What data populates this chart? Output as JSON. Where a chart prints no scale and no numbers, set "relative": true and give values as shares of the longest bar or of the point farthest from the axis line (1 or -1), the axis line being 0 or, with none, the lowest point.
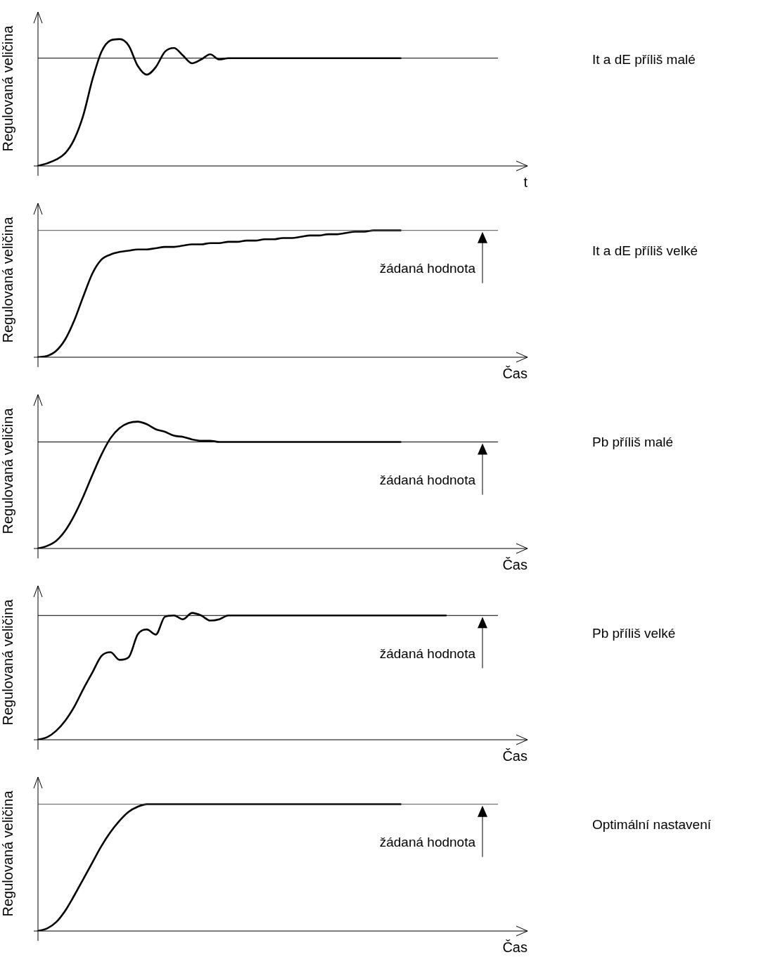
{
  "chart_data": [
    {
      "type": "line",
      "xlabel": "t",
      "ylabel": "Regulovaná veličina",
      "relative": true,
      "tick_labels": false,
      "legend": false,
      "categories": [
        null,
        null,
        null,
        null,
        null,
        null,
        null,
        null,
        null,
        null,
        null,
        null,
        null,
        null,
        null,
        null,
        null,
        null,
        null,
        null,
        null,
        null,
        null,
        null,
        null,
        null,
        null,
        null,
        null,
        null,
        null,
        null,
        null,
        null,
        null,
        null,
        null,
        null,
        null,
        null,
        null,
        null,
        null,
        null,
        null,
        null,
        null,
        null,
        null,
        null,
        null,
        null,
        null,
        null,
        null
      ],
      "series": [
        {
          "color": "#000000",
          "values": [
            0,
            0.02,
            0.05,
            0.1,
            0.21,
            0.4,
            0.68,
            0.9,
            0.99,
            1,
            0.95,
            0.79,
            0.72,
            0.78,
            0.9,
            0.93,
            0.87,
            0.81,
            0.84,
            0.88,
            0.84,
            0.85,
            0.85,
            0.85,
            0.85,
            0.85,
            0.85,
            0.85,
            0.85,
            0.85,
            0.85,
            0.85,
            0.85,
            0.85,
            0.85,
            0.85,
            0.85,
            0.85,
            0.85,
            0.85,
            0.85,
            null,
            null,
            null,
            null,
            null,
            null,
            null,
            null,
            null,
            null,
            null,
            null,
            null,
            null
          ]
        }
      ],
      "ref_lines": [
        {
          "axis": "y",
          "value": 0.85,
          "color": "#000000"
        }
      ],
      "annotations": [
        "It a dE příliš malé"
      ]
    },
    {
      "type": "line",
      "xlabel": "Čas",
      "ylabel": "Regulovaná veličina",
      "relative": true,
      "tick_labels": false,
      "legend": false,
      "categories": [
        null,
        null,
        null,
        null,
        null,
        null,
        null,
        null,
        null,
        null,
        null,
        null,
        null,
        null,
        null,
        null,
        null,
        null,
        null,
        null,
        null,
        null,
        null,
        null,
        null,
        null,
        null,
        null,
        null,
        null,
        null,
        null,
        null,
        null,
        null,
        null,
        null,
        null,
        null,
        null,
        null,
        null,
        null,
        null,
        null,
        null,
        null,
        null,
        null,
        null,
        null,
        null,
        null,
        null,
        null
      ],
      "series": [
        {
          "color": "#000000",
          "values": [
            0,
            0.01,
            0.05,
            0.14,
            0.29,
            0.48,
            0.66,
            0.77,
            0.81,
            0.83,
            0.84,
            0.85,
            0.85,
            0.86,
            0.87,
            0.87,
            0.88,
            0.89,
            0.89,
            0.9,
            0.9,
            0.91,
            0.91,
            0.92,
            0.92,
            0.93,
            0.93,
            0.94,
            0.94,
            0.95,
            0.96,
            0.96,
            0.97,
            0.97,
            0.98,
            0.99,
            0.99,
            1,
            1,
            1,
            1,
            null,
            null,
            null,
            null,
            null,
            null,
            null,
            null,
            null,
            null,
            null,
            null,
            null,
            null
          ]
        }
      ],
      "ref_lines": [
        {
          "axis": "y",
          "value": 1,
          "color": "#555555"
        }
      ],
      "annotations": [
        "It a dE příliš velké",
        {
          "text": "žádaná hodnota",
          "y": 1
        }
      ]
    },
    {
      "type": "line",
      "xlabel": "Čas",
      "ylabel": "Regulovaná veličina",
      "relative": true,
      "tick_labels": false,
      "legend": false,
      "categories": [
        null,
        null,
        null,
        null,
        null,
        null,
        null,
        null,
        null,
        null,
        null,
        null,
        null,
        null,
        null,
        null,
        null,
        null,
        null,
        null,
        null,
        null,
        null,
        null,
        null,
        null,
        null,
        null,
        null,
        null,
        null,
        null,
        null,
        null,
        null,
        null,
        null,
        null,
        null,
        null,
        null,
        null,
        null,
        null,
        null,
        null,
        null,
        null,
        null,
        null,
        null,
        null,
        null,
        null,
        null
      ],
      "series": [
        {
          "color": "#000000",
          "values": [
            0,
            0.02,
            0.06,
            0.14,
            0.26,
            0.41,
            0.58,
            0.74,
            0.87,
            0.95,
            0.99,
            1,
            0.98,
            0.94,
            0.92,
            0.89,
            0.88,
            0.86,
            0.85,
            0.85,
            0.84,
            0.84,
            0.84,
            0.84,
            0.84,
            0.84,
            0.84,
            0.84,
            0.84,
            0.84,
            0.84,
            0.84,
            0.84,
            0.84,
            0.84,
            0.84,
            0.84,
            0.84,
            0.84,
            0.84,
            0.84,
            null,
            null,
            null,
            null,
            null,
            null,
            null,
            null,
            null,
            null,
            null,
            null,
            null,
            null
          ]
        }
      ],
      "ref_lines": [
        {
          "axis": "y",
          "value": 0.84,
          "color": "#000000"
        }
      ],
      "annotations": [
        "Pb příliš malé",
        {
          "text": "žádaná hodnota",
          "y": 0.84
        }
      ]
    },
    {
      "type": "line",
      "xlabel": "Čas",
      "ylabel": "Regulovaná veličina",
      "relative": true,
      "tick_labels": false,
      "legend": false,
      "categories": [
        null,
        null,
        null,
        null,
        null,
        null,
        null,
        null,
        null,
        null,
        null,
        null,
        null,
        null,
        null,
        null,
        null,
        null,
        null,
        null,
        null,
        null,
        null,
        null,
        null,
        null,
        null,
        null,
        null,
        null,
        null,
        null,
        null,
        null,
        null,
        null,
        null,
        null,
        null,
        null,
        null,
        null,
        null,
        null,
        null,
        null,
        null,
        null,
        null,
        null,
        null,
        null,
        null,
        null,
        null
      ],
      "series": [
        {
          "color": "#000000",
          "values": [
            0,
            0.02,
            0.07,
            0.15,
            0.26,
            0.4,
            0.53,
            0.66,
            0.69,
            0.63,
            0.65,
            0.83,
            0.87,
            0.83,
            0.97,
            0.98,
            0.95,
            1,
            0.98,
            0.94,
            0.95,
            0.98,
            0.98,
            0.98,
            0.98,
            0.98,
            0.98,
            0.98,
            0.98,
            0.98,
            0.98,
            0.98,
            0.98,
            0.98,
            0.98,
            0.98,
            0.98,
            0.98,
            0.98,
            0.98,
            0.98,
            0.98,
            0.98,
            0.98,
            0.98,
            0.98,
            null,
            null,
            null,
            null,
            null,
            null,
            null,
            null,
            null
          ]
        }
      ],
      "ref_lines": [
        {
          "axis": "y",
          "value": 0.98,
          "color": "#000000"
        }
      ],
      "annotations": [
        "Pb příliš velké",
        {
          "text": "žádaná hodnota",
          "y": 0.98
        }
      ]
    },
    {
      "type": "line",
      "xlabel": "Čas",
      "ylabel": "Regulovaná veličina",
      "relative": true,
      "tick_labels": false,
      "legend": false,
      "categories": [
        null,
        null,
        null,
        null,
        null,
        null,
        null,
        null,
        null,
        null,
        null,
        null,
        null,
        null,
        null,
        null,
        null,
        null,
        null,
        null,
        null,
        null,
        null,
        null,
        null,
        null,
        null,
        null,
        null,
        null,
        null,
        null,
        null,
        null,
        null,
        null,
        null,
        null,
        null,
        null,
        null,
        null,
        null,
        null,
        null,
        null,
        null,
        null,
        null,
        null,
        null,
        null,
        null,
        null,
        null
      ],
      "series": [
        {
          "color": "#000000",
          "values": [
            0,
            0.02,
            0.07,
            0.16,
            0.28,
            0.41,
            0.54,
            0.67,
            0.78,
            0.87,
            0.94,
            0.98,
            1,
            1,
            1,
            1,
            1,
            1,
            1,
            1,
            1,
            1,
            1,
            1,
            1,
            1,
            1,
            1,
            1,
            1,
            1,
            1,
            1,
            1,
            1,
            1,
            1,
            1,
            1,
            1,
            1,
            null,
            null,
            null,
            null,
            null,
            null,
            null,
            null,
            null,
            null,
            null,
            null,
            null,
            null
          ]
        }
      ],
      "ref_lines": [
        {
          "axis": "y",
          "value": 1,
          "color": "#555555"
        }
      ],
      "annotations": [
        "Optimální nastavení",
        {
          "text": "žádaná hodnota",
          "y": 1
        }
      ]
    }
  ]
}
